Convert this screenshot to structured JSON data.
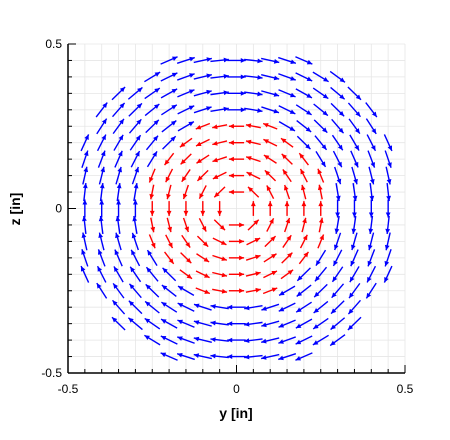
{
  "chart_data": {
    "type": "vector-field",
    "title": "",
    "xlabel": "y [in]",
    "ylabel": "z [in]",
    "xlim": [
      -0.5,
      0.5
    ],
    "ylim": [
      -0.5,
      0.5
    ],
    "x_ticks": [
      {
        "value": -0.5,
        "label": "-0.5"
      },
      {
        "value": 0,
        "label": "0"
      },
      {
        "value": 0.5,
        "label": "0.5"
      }
    ],
    "y_ticks": [
      {
        "value": -0.5,
        "label": "-0.5"
      },
      {
        "value": 0,
        "label": "0"
      },
      {
        "value": 0.5,
        "label": "0.5"
      }
    ],
    "grid": true,
    "grid_step": 0.05,
    "arrow_spacing": 0.05,
    "series": [
      {
        "rotation": "counterclockwise",
        "color": "#ff0000",
        "r_range": [
          0,
          0.27
        ],
        "arrow_length": 0.045
      },
      {
        "rotation": "clockwise",
        "color": "#0000ff",
        "r_range": [
          0.27,
          0.5
        ],
        "arrow_length": 0.055
      }
    ],
    "colors": {
      "grid": "#e6e6e6",
      "axis": "#000000"
    }
  }
}
